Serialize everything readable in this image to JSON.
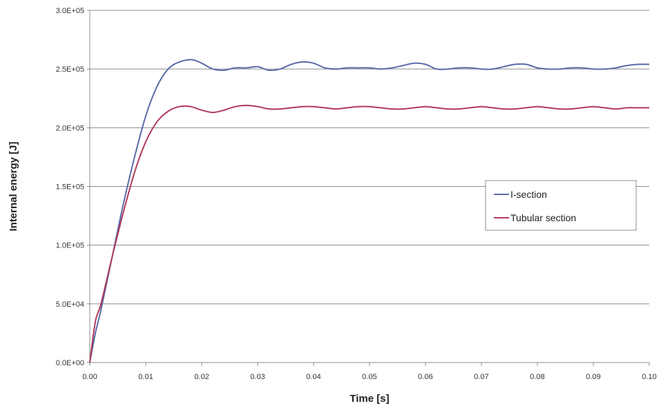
{
  "chart_data": {
    "type": "line",
    "xlabel": "Time [s]",
    "ylabel": "Internal energy [J]",
    "xlim": [
      0,
      0.1
    ],
    "ylim": [
      0,
      300000
    ],
    "x_ticks": [
      "0.00",
      "0.01",
      "0.02",
      "0.03",
      "0.04",
      "0.05",
      "0.06",
      "0.07",
      "0.08",
      "0.09",
      "0.10"
    ],
    "y_ticks": [
      "0.0E+00",
      "5.0E+04",
      "1.0E+05",
      "1.5E+05",
      "2.0E+05",
      "2.5E+05",
      "3.0E+05"
    ],
    "grid": "horizontal",
    "legend_position": "right",
    "series": [
      {
        "name": "I-section",
        "color": "#5a6aa8",
        "x": [
          0,
          0.001,
          0.002,
          0.004,
          0.006,
          0.008,
          0.01,
          0.012,
          0.014,
          0.016,
          0.018,
          0.019,
          0.02,
          0.022,
          0.024,
          0.026,
          0.028,
          0.03,
          0.032,
          0.034,
          0.036,
          0.038,
          0.04,
          0.042,
          0.044,
          0.046,
          0.048,
          0.05,
          0.052,
          0.054,
          0.056,
          0.058,
          0.06,
          0.062,
          0.064,
          0.066,
          0.068,
          0.07,
          0.072,
          0.074,
          0.076,
          0.078,
          0.08,
          0.082,
          0.084,
          0.086,
          0.088,
          0.09,
          0.092,
          0.094,
          0.096,
          0.098,
          0.1
        ],
        "values": [
          0,
          25000,
          45000,
          90000,
          135000,
          175000,
          210000,
          235000,
          250000,
          256000,
          258000,
          257000,
          255000,
          250000,
          249000,
          251000,
          251000,
          252000,
          249000,
          250000,
          254000,
          256000,
          255000,
          251000,
          250000,
          251000,
          251000,
          251000,
          250000,
          251000,
          253000,
          255000,
          254000,
          250000,
          250000,
          251000,
          251000,
          250000,
          250000,
          252000,
          254000,
          254000,
          251000,
          250000,
          250000,
          251000,
          251000,
          250000,
          250000,
          251000,
          253000,
          254000,
          254000
        ]
      },
      {
        "name": "Tubular section",
        "color": "#b03a5a",
        "x": [
          0,
          0.001,
          0.002,
          0.004,
          0.006,
          0.008,
          0.01,
          0.012,
          0.014,
          0.016,
          0.018,
          0.02,
          0.022,
          0.024,
          0.026,
          0.028,
          0.03,
          0.032,
          0.034,
          0.036,
          0.038,
          0.04,
          0.042,
          0.044,
          0.046,
          0.048,
          0.05,
          0.052,
          0.054,
          0.056,
          0.058,
          0.06,
          0.062,
          0.064,
          0.066,
          0.068,
          0.07,
          0.072,
          0.074,
          0.076,
          0.078,
          0.08,
          0.082,
          0.084,
          0.086,
          0.088,
          0.09,
          0.092,
          0.094,
          0.096,
          0.098,
          0.1
        ],
        "values": [
          0,
          35000,
          50000,
          90000,
          128000,
          162000,
          188000,
          205000,
          214000,
          218000,
          218000,
          215000,
          213000,
          215000,
          218000,
          219000,
          218000,
          216000,
          216000,
          217000,
          218000,
          218000,
          217000,
          216000,
          217000,
          218000,
          218000,
          217000,
          216000,
          216000,
          217000,
          218000,
          217000,
          216000,
          216000,
          217000,
          218000,
          217000,
          216000,
          216000,
          217000,
          218000,
          217000,
          216000,
          216000,
          217000,
          218000,
          217000,
          216000,
          217000,
          217000,
          217000
        ]
      }
    ]
  }
}
